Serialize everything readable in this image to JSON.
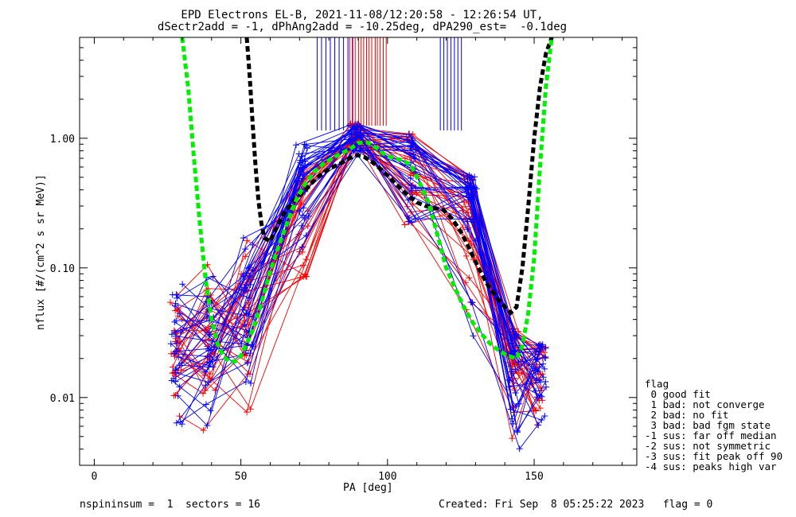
{
  "title_line1": "EPD Electrons EL-B, 2021-11-08/12:20:58 - 12:26:54 UT,",
  "title_line2": "dSectr2add = -1, dPhAng2add = -10.25deg, dPA290_est=  -0.1deg",
  "footer_left": "nspininsum =  1  sectors = 16",
  "footer_right": "Created: Fri Sep  8 05:25:22 2023   flag = 0",
  "legend": {
    "title": "flag",
    "items": [
      " 0 good fit",
      " 1 bad: not converge",
      " 2 bad: no fit",
      " 3 bad: bad fgm state",
      "-1 sus: far off median",
      "-2 sus: not symmetric",
      "-3 sus: fit peak off 90",
      "-4 sus: peaks high var"
    ]
  },
  "colors": {
    "blue": "#0000ff",
    "red": "#ff0000",
    "green": "#00ee00",
    "black": "#000000"
  },
  "chart_data": {
    "type": "line",
    "xlabel": "PA [deg]",
    "ylabel": "nflux [#/(cm^2 s sr MeV)]",
    "xlim": [
      -5,
      185
    ],
    "ylim": [
      0.003,
      6
    ],
    "yscale": "log",
    "xticks": [
      0,
      50,
      100,
      150
    ],
    "yticks": [
      {
        "v": 0.01,
        "label": "0.01"
      },
      {
        "v": 0.1,
        "label": "0.10"
      },
      {
        "v": 1.0,
        "label": "1.00"
      }
    ],
    "green_fit": {
      "x": [
        30,
        32,
        34,
        36,
        38,
        40,
        42,
        44,
        46,
        48,
        50,
        52,
        54,
        56,
        58,
        60,
        63,
        66,
        69,
        72,
        75,
        78,
        81,
        84,
        87,
        90,
        93,
        96,
        99,
        102,
        105,
        108,
        111,
        114,
        117,
        120,
        123,
        126,
        129,
        132,
        135,
        138,
        141,
        144,
        146,
        148,
        150,
        152,
        154,
        156
      ],
      "y": [
        6,
        2.5,
        0.7,
        0.22,
        0.08,
        0.04,
        0.026,
        0.021,
        0.019,
        0.019,
        0.021,
        0.026,
        0.033,
        0.045,
        0.065,
        0.095,
        0.15,
        0.23,
        0.34,
        0.45,
        0.55,
        0.63,
        0.7,
        0.76,
        0.82,
        0.92,
        0.93,
        0.85,
        0.75,
        0.7,
        0.68,
        0.62,
        0.45,
        0.32,
        0.18,
        0.1,
        0.07,
        0.05,
        0.038,
        0.031,
        0.026,
        0.023,
        0.021,
        0.02,
        0.025,
        0.045,
        0.12,
        0.6,
        2.5,
        6
      ]
    },
    "black_fit": {
      "x": [
        52,
        53,
        54,
        55,
        56,
        57,
        58,
        60,
        62,
        65,
        68,
        72,
        76,
        80,
        84,
        88,
        90,
        92,
        95,
        98,
        101,
        104,
        107,
        110,
        113,
        116,
        119,
        122,
        125,
        128,
        131,
        134,
        137,
        140,
        142,
        144,
        146,
        148,
        150,
        152,
        154,
        156
      ],
      "y": [
        6,
        3,
        1.3,
        0.6,
        0.33,
        0.22,
        0.17,
        0.16,
        0.2,
        0.27,
        0.33,
        0.4,
        0.5,
        0.58,
        0.64,
        0.72,
        0.74,
        0.72,
        0.65,
        0.57,
        0.49,
        0.42,
        0.36,
        0.32,
        0.3,
        0.29,
        0.28,
        0.24,
        0.19,
        0.14,
        0.1,
        0.075,
        0.06,
        0.05,
        0.045,
        0.05,
        0.1,
        0.3,
        1,
        2.5,
        4.5,
        6
      ]
    },
    "series_seed": {
      "blue": 11,
      "red": 7
    }
  }
}
